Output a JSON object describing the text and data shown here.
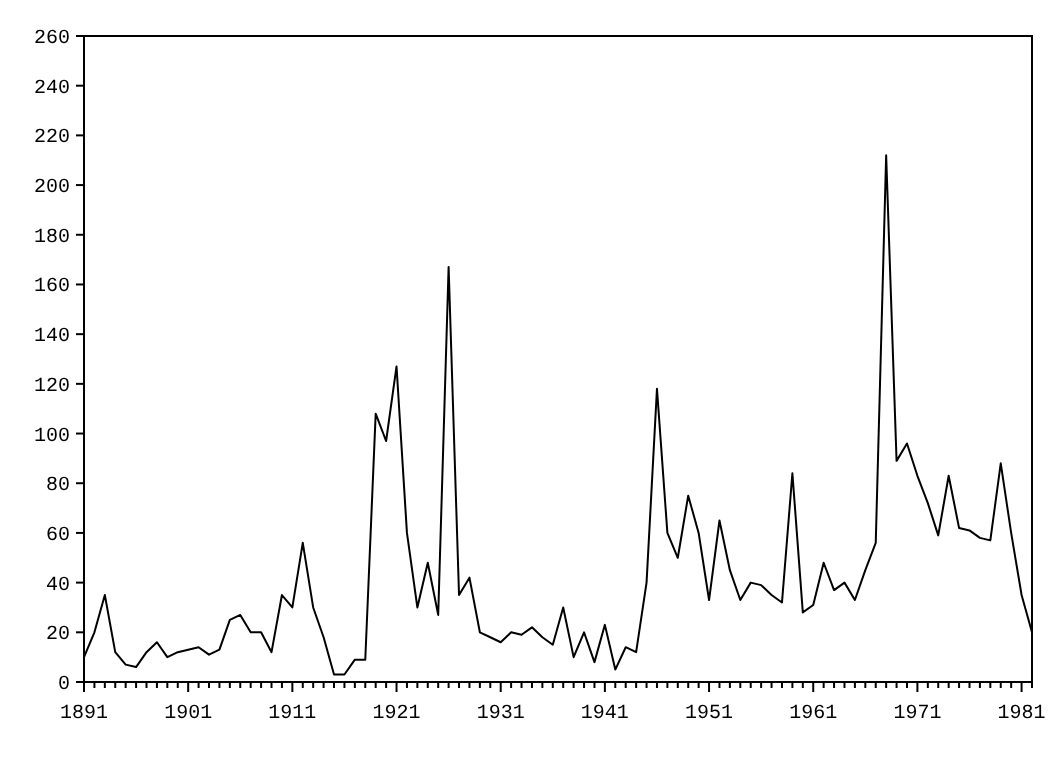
{
  "chart_data": {
    "type": "line",
    "x": [
      1891,
      1892,
      1893,
      1894,
      1895,
      1896,
      1897,
      1898,
      1899,
      1900,
      1901,
      1902,
      1903,
      1904,
      1905,
      1906,
      1907,
      1908,
      1909,
      1910,
      1911,
      1912,
      1913,
      1914,
      1915,
      1916,
      1917,
      1918,
      1919,
      1920,
      1921,
      1922,
      1923,
      1924,
      1925,
      1926,
      1927,
      1928,
      1929,
      1930,
      1931,
      1932,
      1933,
      1934,
      1935,
      1936,
      1937,
      1938,
      1939,
      1940,
      1941,
      1942,
      1943,
      1944,
      1945,
      1946,
      1947,
      1948,
      1949,
      1950,
      1951,
      1952,
      1953,
      1954,
      1955,
      1956,
      1957,
      1958,
      1959,
      1960,
      1961,
      1962,
      1963,
      1964,
      1965,
      1966,
      1967,
      1968,
      1969,
      1970,
      1971,
      1972,
      1973,
      1974,
      1975,
      1976,
      1977,
      1978,
      1979,
      1980,
      1981,
      1982
    ],
    "series": [
      {
        "color": "#000000",
        "values": [
          10,
          20,
          35,
          12,
          7,
          6,
          12,
          16,
          10,
          12,
          13,
          14,
          11,
          13,
          25,
          27,
          20,
          20,
          12,
          35,
          30,
          56,
          30,
          18,
          3,
          3,
          9,
          9,
          108,
          97,
          127,
          60,
          30,
          48,
          27,
          167,
          35,
          42,
          20,
          18,
          16,
          20,
          19,
          22,
          18,
          15,
          30,
          10,
          20,
          8,
          23,
          5,
          14,
          12,
          40,
          118,
          60,
          50,
          75,
          60,
          33,
          65,
          45,
          33,
          40,
          39,
          35,
          32,
          84,
          28,
          31,
          48,
          37,
          40,
          33,
          45,
          56,
          212,
          89,
          96,
          83,
          72,
          59,
          83,
          62,
          61,
          58,
          57,
          88,
          60,
          35,
          20
        ]
      }
    ],
    "xlim": [
      1891,
      1982
    ],
    "ylim": [
      0,
      260
    ],
    "yticks": [
      0,
      20,
      40,
      60,
      80,
      100,
      120,
      140,
      160,
      180,
      200,
      220,
      240,
      260
    ],
    "xticks": [
      1891,
      {
        "value": 1892,
        "label": null
      },
      {
        "value": 1893,
        "label": null
      },
      {
        "value": 1894,
        "label": null
      },
      {
        "value": 1895,
        "label": null
      },
      {
        "value": 1896,
        "label": null
      },
      {
        "value": 1897,
        "label": null
      },
      {
        "value": 1898,
        "label": null
      },
      {
        "value": 1899,
        "label": null
      },
      {
        "value": 1900,
        "label": null
      },
      1901,
      {
        "value": 1902,
        "label": null
      },
      {
        "value": 1903,
        "label": null
      },
      {
        "value": 1904,
        "label": null
      },
      {
        "value": 1905,
        "label": null
      },
      {
        "value": 1906,
        "label": null
      },
      {
        "value": 1907,
        "label": null
      },
      {
        "value": 1908,
        "label": null
      },
      {
        "value": 1909,
        "label": null
      },
      {
        "value": 1910,
        "label": null
      },
      1911,
      {
        "value": 1912,
        "label": null
      },
      {
        "value": 1913,
        "label": null
      },
      {
        "value": 1914,
        "label": null
      },
      {
        "value": 1915,
        "label": null
      },
      {
        "value": 1916,
        "label": null
      },
      {
        "value": 1917,
        "label": null
      },
      {
        "value": 1918,
        "label": null
      },
      {
        "value": 1919,
        "label": null
      },
      {
        "value": 1920,
        "label": null
      },
      1921,
      {
        "value": 1922,
        "label": null
      },
      {
        "value": 1923,
        "label": null
      },
      {
        "value": 1924,
        "label": null
      },
      {
        "value": 1925,
        "label": null
      },
      {
        "value": 1926,
        "label": null
      },
      {
        "value": 1927,
        "label": null
      },
      {
        "value": 1928,
        "label": null
      },
      {
        "value": 1929,
        "label": null
      },
      {
        "value": 1930,
        "label": null
      },
      1931,
      {
        "value": 1932,
        "label": null
      },
      {
        "value": 1933,
        "label": null
      },
      {
        "value": 1934,
        "label": null
      },
      {
        "value": 1935,
        "label": null
      },
      {
        "value": 1936,
        "label": null
      },
      {
        "value": 1937,
        "label": null
      },
      {
        "value": 1938,
        "label": null
      },
      {
        "value": 1939,
        "label": null
      },
      {
        "value": 1940,
        "label": null
      },
      1941,
      {
        "value": 1942,
        "label": null
      },
      {
        "value": 1943,
        "label": null
      },
      {
        "value": 1944,
        "label": null
      },
      {
        "value": 1945,
        "label": null
      },
      {
        "value": 1946,
        "label": null
      },
      {
        "value": 1947,
        "label": null
      },
      {
        "value": 1948,
        "label": null
      },
      {
        "value": 1949,
        "label": null
      },
      {
        "value": 1950,
        "label": null
      },
      1951,
      {
        "value": 1952,
        "label": null
      },
      {
        "value": 1953,
        "label": null
      },
      {
        "value": 1954,
        "label": null
      },
      {
        "value": 1955,
        "label": null
      },
      {
        "value": 1956,
        "label": null
      },
      {
        "value": 1957,
        "label": null
      },
      {
        "value": 1958,
        "label": null
      },
      {
        "value": 1959,
        "label": null
      },
      {
        "value": 1960,
        "label": null
      },
      1961,
      {
        "value": 1962,
        "label": null
      },
      {
        "value": 1963,
        "label": null
      },
      {
        "value": 1964,
        "label": null
      },
      {
        "value": 1965,
        "label": null
      },
      {
        "value": 1966,
        "label": null
      },
      {
        "value": 1967,
        "label": null
      },
      {
        "value": 1968,
        "label": null
      },
      {
        "value": 1969,
        "label": null
      },
      {
        "value": 1970,
        "label": null
      },
      1971,
      {
        "value": 1972,
        "label": null
      },
      {
        "value": 1973,
        "label": null
      },
      {
        "value": 1974,
        "label": null
      },
      {
        "value": 1975,
        "label": null
      },
      {
        "value": 1976,
        "label": null
      },
      {
        "value": 1977,
        "label": null
      },
      {
        "value": 1978,
        "label": null
      },
      {
        "value": 1979,
        "label": null
      },
      {
        "value": 1980,
        "label": null
      },
      1981,
      {
        "value": 1982,
        "label": null
      }
    ],
    "marker": "none",
    "line_style": "solid"
  }
}
